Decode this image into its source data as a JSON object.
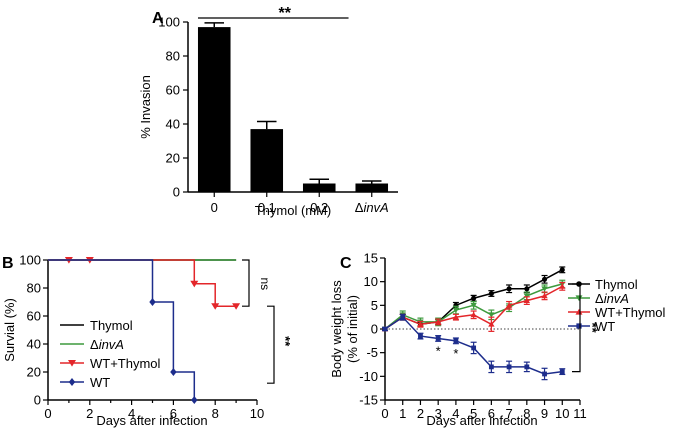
{
  "chart_data": [
    {
      "panel": "A",
      "type": "bar",
      "categories": [
        "0",
        "0.1",
        "0.2",
        "ΔinvA"
      ],
      "values": [
        97,
        37,
        5,
        5
      ],
      "errors": [
        2.5,
        4.5,
        2.5,
        1.5
      ],
      "xlabel": "Thymol (mM)",
      "ylabel": "% Invasion",
      "ylim": [
        0,
        100
      ],
      "yticks": [
        "0",
        "20",
        "40",
        "60",
        "80",
        "100"
      ],
      "annotation": "**"
    },
    {
      "panel": "B",
      "type": "line",
      "xlabel": "Days after infection",
      "ylabel": "Survial (%)",
      "xlim": [
        0,
        10
      ],
      "ylim": [
        0,
        100
      ],
      "xticks": [
        "0",
        "2",
        "4",
        "6",
        "8",
        "10"
      ],
      "yticks": [
        "0",
        "20",
        "40",
        "60",
        "80",
        "100"
      ],
      "series": [
        {
          "name": "Thymol",
          "color": "#000000",
          "marker": "none",
          "x": [
            0,
            9
          ],
          "y": [
            100,
            100
          ]
        },
        {
          "name": "ΔinvA",
          "color": "#3d9a3d",
          "marker": "none",
          "x": [
            0,
            9
          ],
          "y": [
            100,
            100
          ]
        },
        {
          "name": "WT+Thymol",
          "color": "#e3262a",
          "marker": "triangle-down",
          "x": [
            0,
            7,
            8,
            9
          ],
          "y": [
            100,
            83,
            67,
            67
          ],
          "marker_x": [
            1,
            2,
            7,
            8,
            9
          ],
          "marker_y": [
            100,
            100,
            83,
            67,
            67
          ]
        },
        {
          "name": "WT",
          "color": "#1d2d8c",
          "marker": "diamond",
          "x": [
            0,
            5,
            6,
            7
          ],
          "y": [
            100,
            70,
            20,
            0
          ],
          "marker_x": [
            5,
            6,
            7
          ],
          "marker_y": [
            70,
            20,
            0
          ]
        }
      ],
      "annotations": [
        "ns",
        "**"
      ]
    },
    {
      "panel": "C",
      "type": "line",
      "xlabel": "Days after infection",
      "ylabel_line1": "Body weight loss",
      "ylabel_line2": "(% of initial)",
      "xlim": [
        0,
        11
      ],
      "ylim": [
        -15,
        15
      ],
      "xticks": [
        "0",
        "1",
        "2",
        "3",
        "4",
        "5",
        "6",
        "7",
        "8",
        "9",
        "10",
        "11"
      ],
      "yticks": [
        "-15",
        "-10",
        "-5",
        "0",
        "5",
        "10",
        "15"
      ],
      "series": [
        {
          "name": "Thymol",
          "color": "#000000",
          "marker": "circle",
          "x": [
            0,
            1,
            2,
            3,
            4,
            5,
            6,
            7,
            8,
            9,
            10
          ],
          "y": [
            0,
            2.5,
            1,
            1.5,
            5,
            6.5,
            7.5,
            8.5,
            8.5,
            10.5,
            12.5
          ],
          "err": [
            0.3,
            0.6,
            0.5,
            0.5,
            0.6,
            0.6,
            0.6,
            0.8,
            0.8,
            0.8,
            0.6
          ]
        },
        {
          "name": "ΔinvA",
          "color": "#3d9a3d",
          "marker": "triangle-down",
          "x": [
            0,
            1,
            2,
            3,
            4,
            5,
            6,
            7,
            8,
            9,
            10
          ],
          "y": [
            0,
            3,
            1.5,
            1.5,
            4,
            5,
            3,
            4.5,
            7,
            8.5,
            9.5
          ],
          "err": [
            0.3,
            0.8,
            0.8,
            0.8,
            0.8,
            0.8,
            1.0,
            0.8,
            0.8,
            0.8,
            0.8
          ]
        },
        {
          "name": "WT+Thymol",
          "color": "#e3262a",
          "marker": "triangle-up",
          "x": [
            0,
            1,
            2,
            3,
            4,
            5,
            6,
            7,
            8,
            9,
            10
          ],
          "y": [
            0,
            2.5,
            1,
            1.5,
            2.5,
            3,
            1,
            5,
            6,
            7,
            9
          ],
          "err": [
            0.3,
            0.6,
            0.6,
            0.6,
            0.6,
            0.8,
            1.5,
            0.8,
            0.8,
            0.8,
            0.8
          ]
        },
        {
          "name": "WT",
          "color": "#1d2d8c",
          "marker": "square",
          "x": [
            0,
            1,
            2,
            3,
            4,
            5,
            6,
            7,
            8,
            9,
            10
          ],
          "y": [
            0,
            2.5,
            -1.5,
            -2,
            -2.5,
            -4,
            -8,
            -8,
            -8,
            -9.5,
            -9
          ],
          "err": [
            0.3,
            0.6,
            0.6,
            0.6,
            0.6,
            1.2,
            1.2,
            1.2,
            1.0,
            1.2,
            0.6
          ]
        }
      ],
      "star_annotations": [
        {
          "x": 3,
          "text": "*"
        },
        {
          "x": 4,
          "text": "*"
        }
      ],
      "annotation": "**"
    }
  ],
  "panel_labels": [
    "A",
    "B",
    "C"
  ]
}
